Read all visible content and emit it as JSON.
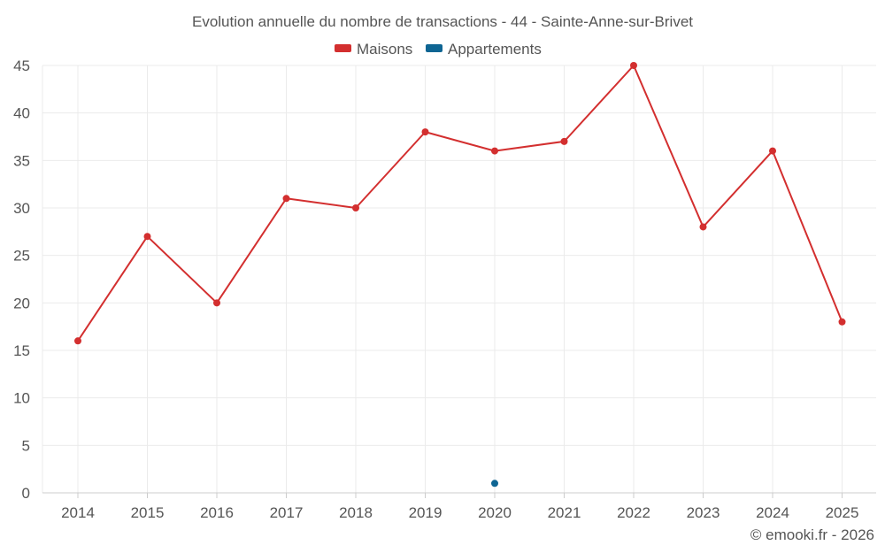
{
  "chart_data": {
    "type": "line",
    "title": "Evolution annuelle du nombre de transactions - 44 - Sainte-Anne-sur-Brivet",
    "xlabel": "",
    "ylabel": "",
    "categories": [
      "2014",
      "2015",
      "2016",
      "2017",
      "2018",
      "2019",
      "2020",
      "2021",
      "2022",
      "2023",
      "2024",
      "2025"
    ],
    "ylim": [
      0,
      45
    ],
    "yticks": [
      0,
      5,
      10,
      15,
      20,
      25,
      30,
      35,
      40,
      45
    ],
    "grid": true,
    "legend_position": "top-center",
    "series": [
      {
        "name": "Maisons",
        "color": "#d32f2f",
        "values": [
          16,
          27,
          20,
          31,
          30,
          38,
          36,
          37,
          45,
          28,
          36,
          18
        ]
      },
      {
        "name": "Appartements",
        "color": "#0e6593",
        "values": [
          null,
          null,
          null,
          null,
          null,
          null,
          1,
          null,
          null,
          null,
          null,
          null
        ]
      }
    ]
  },
  "credit": "© emooki.fr - 2026"
}
